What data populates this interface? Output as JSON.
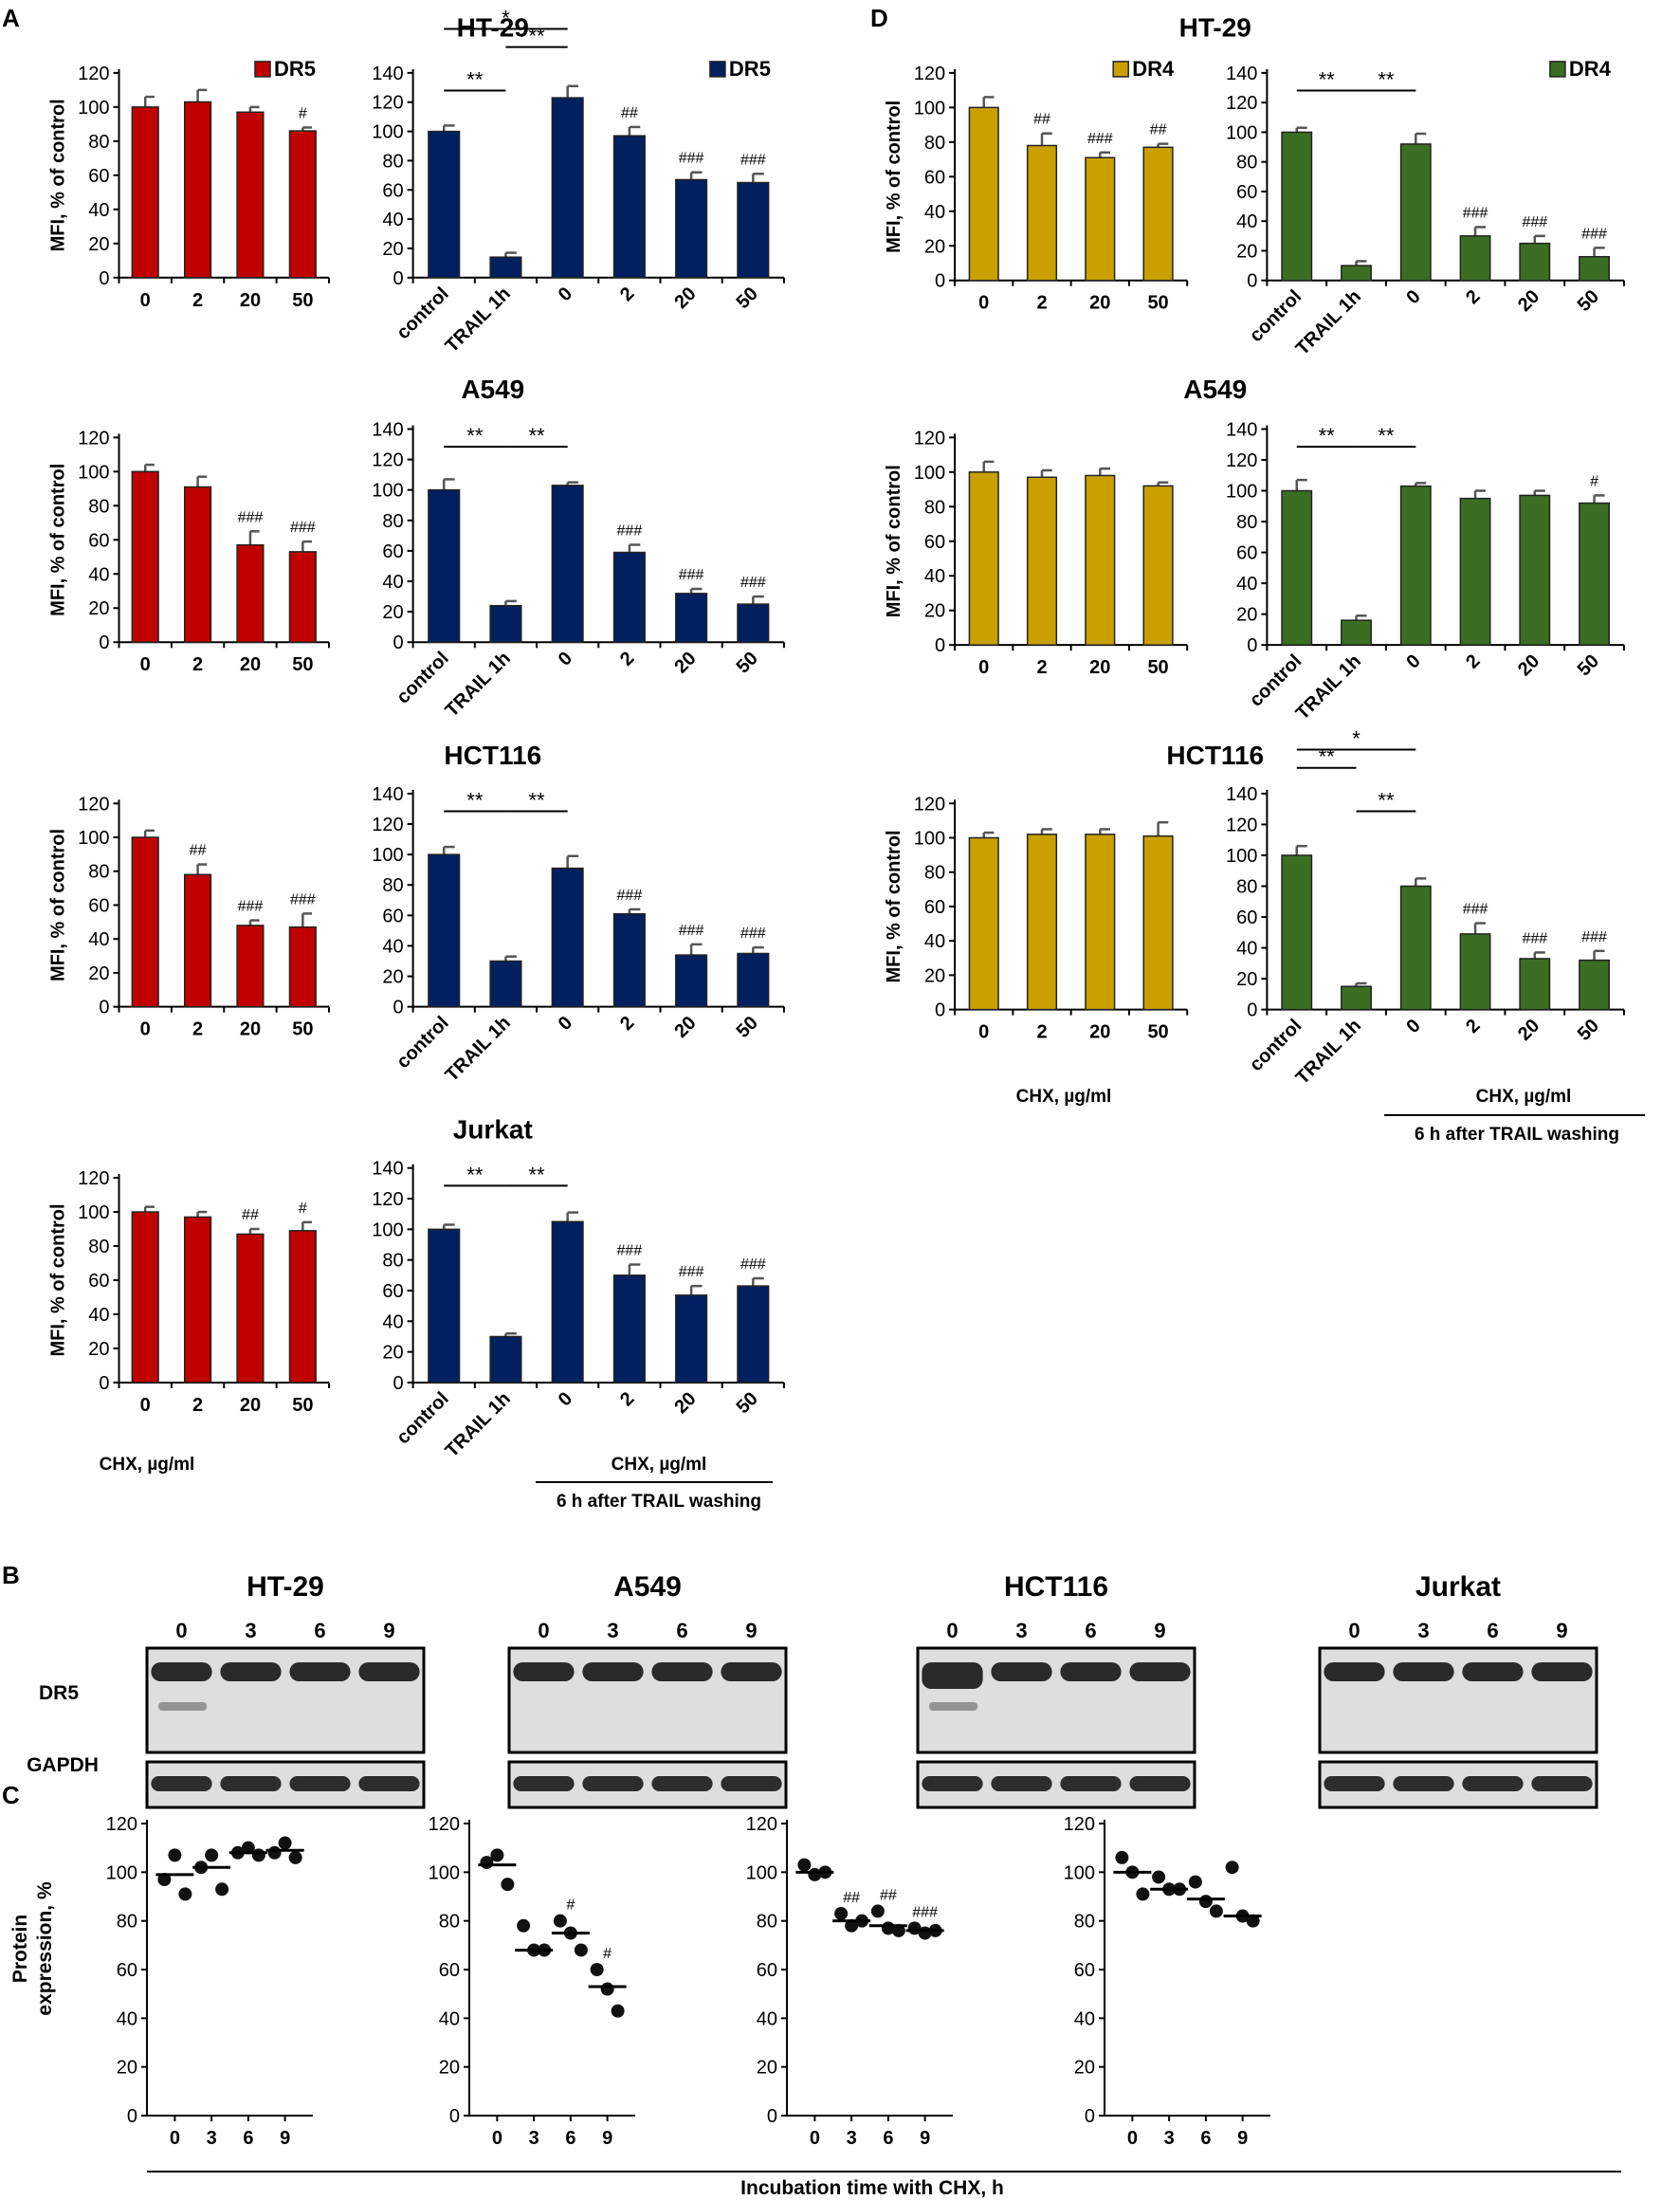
{
  "figure": {
    "panel_labels": [
      "A",
      "B",
      "C",
      "D"
    ],
    "y_axis_label": "MFI, % of control",
    "x_axis_label": "CHX, µg/ml",
    "washing_label": "6 h after TRAIL washing",
    "western_row_labels": [
      "DR5",
      "GAPDH"
    ],
    "protein_y_label_1": "Protein",
    "protein_y_label_2": "expression, %",
    "incubation_label": "Incubation time with CHX, h",
    "colors": {
      "dr5_chx": "#c00000",
      "dr5_trail": "#002060",
      "dr4_chx": "#c9a000",
      "dr4_trail": "#3b6e22"
    }
  },
  "chart_data": [
    {
      "id": "A-HT29-left",
      "type": "bar",
      "title": "HT-29",
      "legend": "DR5",
      "categories": [
        "0",
        "2",
        "20",
        "50"
      ],
      "values": [
        100,
        103,
        97,
        86
      ],
      "errors": [
        6,
        7,
        3,
        2
      ],
      "annotations": [
        "",
        "",
        "",
        "#"
      ],
      "ylim": [
        0,
        120
      ],
      "yticks": [
        0,
        20,
        40,
        60,
        80,
        100,
        120
      ],
      "color": "#c00000"
    },
    {
      "id": "A-HT29-right",
      "type": "bar",
      "legend": "DR5",
      "categories": [
        "control",
        "TRAIL 1h",
        "0",
        "2",
        "20",
        "50"
      ],
      "values": [
        100,
        14,
        123,
        97,
        67,
        65
      ],
      "errors": [
        4,
        3,
        8,
        6,
        5,
        6
      ],
      "annotations": [
        "",
        "",
        "",
        "##",
        "###",
        "###"
      ],
      "ylim": [
        0,
        140
      ],
      "yticks": [
        0,
        20,
        40,
        60,
        80,
        100,
        120,
        140
      ],
      "color": "#002060",
      "brackets": [
        {
          "from": 0,
          "to": 2,
          "label": "*",
          "level": 2
        },
        {
          "from": 1,
          "to": 2,
          "label": "**",
          "level": 1
        },
        {
          "from": 0,
          "to": 1,
          "label": "**",
          "level": 0
        }
      ]
    },
    {
      "id": "A-A549-left",
      "type": "bar",
      "title": "A549",
      "categories": [
        "0",
        "2",
        "20",
        "50"
      ],
      "values": [
        100,
        91,
        57,
        53
      ],
      "errors": [
        4,
        6,
        8,
        6
      ],
      "annotations": [
        "",
        "",
        "###",
        "###"
      ],
      "ylim": [
        0,
        120
      ],
      "yticks": [
        0,
        20,
        40,
        60,
        80,
        100,
        120
      ],
      "color": "#c00000"
    },
    {
      "id": "A-A549-right",
      "type": "bar",
      "categories": [
        "control",
        "TRAIL 1h",
        "0",
        "2",
        "20",
        "50"
      ],
      "values": [
        100,
        24,
        103,
        59,
        32,
        25
      ],
      "errors": [
        7,
        3,
        2,
        5,
        3,
        5
      ],
      "annotations": [
        "",
        "",
        "",
        "###",
        "###",
        "###"
      ],
      "ylim": [
        0,
        140
      ],
      "yticks": [
        0,
        20,
        40,
        60,
        80,
        100,
        120,
        140
      ],
      "color": "#002060",
      "brackets": [
        {
          "from": 0,
          "to": 1,
          "label": "**",
          "level": 0
        },
        {
          "from": 1,
          "to": 2,
          "label": "**",
          "level": 0
        }
      ]
    },
    {
      "id": "A-HCT116-left",
      "type": "bar",
      "title": "HCT116",
      "categories": [
        "0",
        "2",
        "20",
        "50"
      ],
      "values": [
        100,
        78,
        48,
        47
      ],
      "errors": [
        4,
        6,
        3,
        8
      ],
      "annotations": [
        "",
        "##",
        "###",
        "###"
      ],
      "ylim": [
        0,
        120
      ],
      "yticks": [
        0,
        20,
        40,
        60,
        80,
        100,
        120
      ],
      "color": "#c00000"
    },
    {
      "id": "A-HCT116-right",
      "type": "bar",
      "categories": [
        "control",
        "TRAIL 1h",
        "0",
        "2",
        "20",
        "50"
      ],
      "values": [
        100,
        30,
        91,
        61,
        34,
        35
      ],
      "errors": [
        5,
        3,
        8,
        3,
        7,
        4
      ],
      "annotations": [
        "",
        "",
        "",
        "###",
        "###",
        "###"
      ],
      "ylim": [
        0,
        140
      ],
      "yticks": [
        0,
        20,
        40,
        60,
        80,
        100,
        120,
        140
      ],
      "color": "#002060",
      "brackets": [
        {
          "from": 0,
          "to": 1,
          "label": "**",
          "level": 0
        },
        {
          "from": 1,
          "to": 2,
          "label": "**",
          "level": 0
        }
      ]
    },
    {
      "id": "A-Jurkat-left",
      "type": "bar",
      "title": "Jurkat",
      "categories": [
        "0",
        "2",
        "20",
        "50"
      ],
      "values": [
        100,
        97,
        87,
        89
      ],
      "errors": [
        3,
        3,
        3,
        5
      ],
      "annotations": [
        "",
        "",
        "##",
        "#"
      ],
      "ylim": [
        0,
        120
      ],
      "yticks": [
        0,
        20,
        40,
        60,
        80,
        100,
        120
      ],
      "color": "#c00000"
    },
    {
      "id": "A-Jurkat-right",
      "type": "bar",
      "categories": [
        "control",
        "TRAIL 1h",
        "0",
        "2",
        "20",
        "50"
      ],
      "values": [
        100,
        30,
        105,
        70,
        57,
        63
      ],
      "errors": [
        3,
        2,
        6,
        7,
        6,
        5
      ],
      "annotations": [
        "",
        "",
        "",
        "###",
        "###",
        "###"
      ],
      "ylim": [
        0,
        140
      ],
      "yticks": [
        0,
        20,
        40,
        60,
        80,
        100,
        120,
        140
      ],
      "color": "#002060",
      "brackets": [
        {
          "from": 0,
          "to": 1,
          "label": "**",
          "level": 0
        },
        {
          "from": 1,
          "to": 2,
          "label": "**",
          "level": 0
        }
      ]
    },
    {
      "id": "D-HT29-left",
      "type": "bar",
      "title": "HT-29",
      "legend": "DR4",
      "categories": [
        "0",
        "2",
        "20",
        "50"
      ],
      "values": [
        100,
        78,
        71,
        77
      ],
      "errors": [
        6,
        7,
        3,
        2
      ],
      "annotations": [
        "",
        "##",
        "###",
        "##"
      ],
      "ylim": [
        0,
        120
      ],
      "yticks": [
        0,
        20,
        40,
        60,
        80,
        100,
        120
      ],
      "color": "#c9a000"
    },
    {
      "id": "D-HT29-right",
      "type": "bar",
      "legend": "DR4",
      "categories": [
        "control",
        "TRAIL 1h",
        "0",
        "2",
        "20",
        "50"
      ],
      "values": [
        100,
        10,
        92,
        30,
        25,
        16
      ],
      "errors": [
        3,
        3,
        7,
        6,
        5,
        6
      ],
      "annotations": [
        "",
        "",
        "",
        "###",
        "###",
        "###"
      ],
      "ylim": [
        0,
        140
      ],
      "yticks": [
        0,
        20,
        40,
        60,
        80,
        100,
        120,
        140
      ],
      "color": "#3b6e22",
      "brackets": [
        {
          "from": 0,
          "to": 1,
          "label": "**",
          "level": 0
        },
        {
          "from": 1,
          "to": 2,
          "label": "**",
          "level": 0
        }
      ]
    },
    {
      "id": "D-A549-left",
      "type": "bar",
      "title": "A549",
      "categories": [
        "0",
        "2",
        "20",
        "50"
      ],
      "values": [
        100,
        97,
        98,
        92
      ],
      "errors": [
        6,
        4,
        4,
        2
      ],
      "annotations": [
        "",
        "",
        "",
        ""
      ],
      "ylim": [
        0,
        120
      ],
      "yticks": [
        0,
        20,
        40,
        60,
        80,
        100,
        120
      ],
      "color": "#c9a000"
    },
    {
      "id": "D-A549-right",
      "type": "bar",
      "categories": [
        "control",
        "TRAIL 1h",
        "0",
        "2",
        "20",
        "50"
      ],
      "values": [
        100,
        16,
        103,
        95,
        97,
        92
      ],
      "errors": [
        7,
        3,
        2,
        5,
        3,
        5
      ],
      "annotations": [
        "",
        "",
        "",
        "",
        "",
        "#"
      ],
      "ylim": [
        0,
        140
      ],
      "yticks": [
        0,
        20,
        40,
        60,
        80,
        100,
        120,
        140
      ],
      "color": "#3b6e22",
      "brackets": [
        {
          "from": 0,
          "to": 1,
          "label": "**",
          "level": 0
        },
        {
          "from": 1,
          "to": 2,
          "label": "**",
          "level": 0
        }
      ]
    },
    {
      "id": "D-HCT116-left",
      "type": "bar",
      "title": "HCT116",
      "categories": [
        "0",
        "2",
        "20",
        "50"
      ],
      "values": [
        100,
        102,
        102,
        101
      ],
      "errors": [
        3,
        3,
        3,
        8
      ],
      "annotations": [
        "",
        "",
        "",
        ""
      ],
      "ylim": [
        0,
        120
      ],
      "yticks": [
        0,
        20,
        40,
        60,
        80,
        100,
        120
      ],
      "color": "#c9a000"
    },
    {
      "id": "D-HCT116-right",
      "type": "bar",
      "categories": [
        "control",
        "TRAIL 1h",
        "0",
        "2",
        "20",
        "50"
      ],
      "values": [
        100,
        15,
        80,
        49,
        33,
        32
      ],
      "errors": [
        6,
        2,
        5,
        7,
        4,
        6
      ],
      "annotations": [
        "",
        "",
        "",
        "###",
        "###",
        "###"
      ],
      "ylim": [
        0,
        140
      ],
      "yticks": [
        0,
        20,
        40,
        60,
        80,
        100,
        120,
        140
      ],
      "color": "#3b6e22",
      "brackets": [
        {
          "from": 0,
          "to": 2,
          "label": "*",
          "level": 2
        },
        {
          "from": 0,
          "to": 1,
          "label": "**",
          "level": 1
        },
        {
          "from": 1,
          "to": 2,
          "label": "**",
          "level": 0
        }
      ]
    },
    {
      "id": "C-HT29",
      "type": "scatter",
      "categories": [
        "0",
        "3",
        "6",
        "9"
      ],
      "points": [
        [
          97,
          107,
          91
        ],
        [
          102,
          107,
          93
        ],
        [
          108,
          110,
          107
        ],
        [
          108,
          112,
          106
        ]
      ],
      "medians": [
        99,
        102,
        108,
        109
      ],
      "annotations": [
        "",
        "",
        "",
        ""
      ],
      "ylim": [
        0,
        120
      ],
      "yticks": [
        0,
        20,
        40,
        60,
        80,
        100,
        120
      ]
    },
    {
      "id": "C-A549",
      "type": "scatter",
      "categories": [
        "0",
        "3",
        "6",
        "9"
      ],
      "points": [
        [
          104,
          107,
          95
        ],
        [
          78,
          68,
          68
        ],
        [
          80,
          75,
          68
        ],
        [
          60,
          52,
          43
        ]
      ],
      "medians": [
        103,
        68,
        75,
        53
      ],
      "annotations": [
        "",
        "",
        "#",
        "#"
      ],
      "ylim": [
        0,
        120
      ],
      "yticks": [
        0,
        20,
        40,
        60,
        80,
        100,
        120
      ]
    },
    {
      "id": "C-HCT116",
      "type": "scatter",
      "categories": [
        "0",
        "3",
        "6",
        "9"
      ],
      "points": [
        [
          103,
          99,
          100
        ],
        [
          83,
          78,
          80
        ],
        [
          84,
          77,
          76
        ],
        [
          77,
          75,
          76
        ]
      ],
      "medians": [
        100,
        80,
        78,
        76
      ],
      "annotations": [
        "",
        "##",
        "##",
        "###"
      ],
      "ylim": [
        0,
        120
      ],
      "yticks": [
        0,
        20,
        40,
        60,
        80,
        100,
        120
      ]
    },
    {
      "id": "C-Jurkat",
      "type": "scatter",
      "categories": [
        "0",
        "3",
        "6",
        "9"
      ],
      "points": [
        [
          106,
          100,
          91
        ],
        [
          98,
          93,
          93
        ],
        [
          96,
          88,
          84
        ],
        [
          102,
          82,
          80
        ]
      ],
      "medians": [
        100,
        93,
        89,
        82
      ],
      "annotations": [
        "",
        "",
        "",
        ""
      ],
      "ylim": [
        0,
        120
      ],
      "yticks": [
        0,
        20,
        40,
        60,
        80,
        100,
        120
      ]
    }
  ],
  "western": [
    {
      "id": "B-HT29",
      "title": "HT-29",
      "lanes": [
        "0",
        "3",
        "6",
        "9"
      ]
    },
    {
      "id": "B-A549",
      "title": "A549",
      "lanes": [
        "0",
        "3",
        "6",
        "9"
      ]
    },
    {
      "id": "B-HCT116",
      "title": "HCT116",
      "lanes": [
        "0",
        "3",
        "6",
        "9"
      ]
    },
    {
      "id": "B-Jurkat",
      "title": "Jurkat",
      "lanes": [
        "0",
        "3",
        "6",
        "9"
      ]
    }
  ]
}
